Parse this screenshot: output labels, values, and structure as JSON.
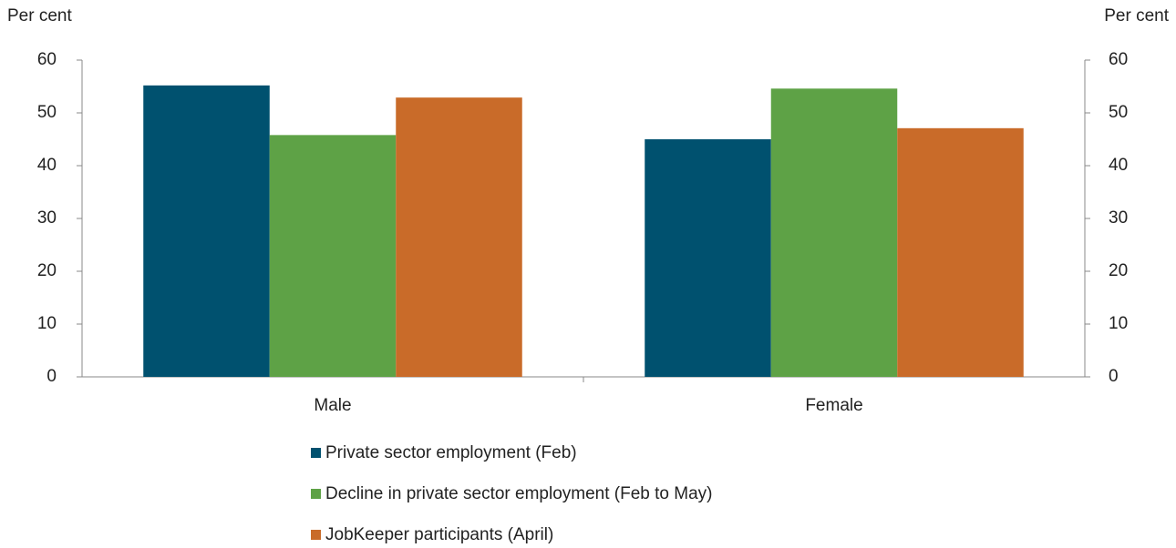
{
  "chart_data": {
    "type": "bar",
    "y_label": "Per cent",
    "y2_label": "Per cent",
    "categories": [
      "Male",
      "Female"
    ],
    "series": [
      {
        "name": "Private sector employment (Feb)",
        "color": "#00516f",
        "values": [
          55.2,
          45.0
        ]
      },
      {
        "name": "Decline in private sector employment (Feb to May)",
        "color": "#5ea246",
        "values": [
          45.8,
          54.6
        ]
      },
      {
        "name": "JobKeeper participants (April)",
        "color": "#c96b29",
        "values": [
          52.9,
          47.1
        ]
      }
    ],
    "ylim": [
      0,
      60
    ],
    "yticks": [
      0,
      10,
      20,
      30,
      40,
      50,
      60
    ],
    "y2lim": [
      0,
      60
    ],
    "y2ticks": [
      0,
      10,
      20,
      30,
      40,
      50,
      60
    ],
    "grid": false,
    "legend": "bottom"
  }
}
